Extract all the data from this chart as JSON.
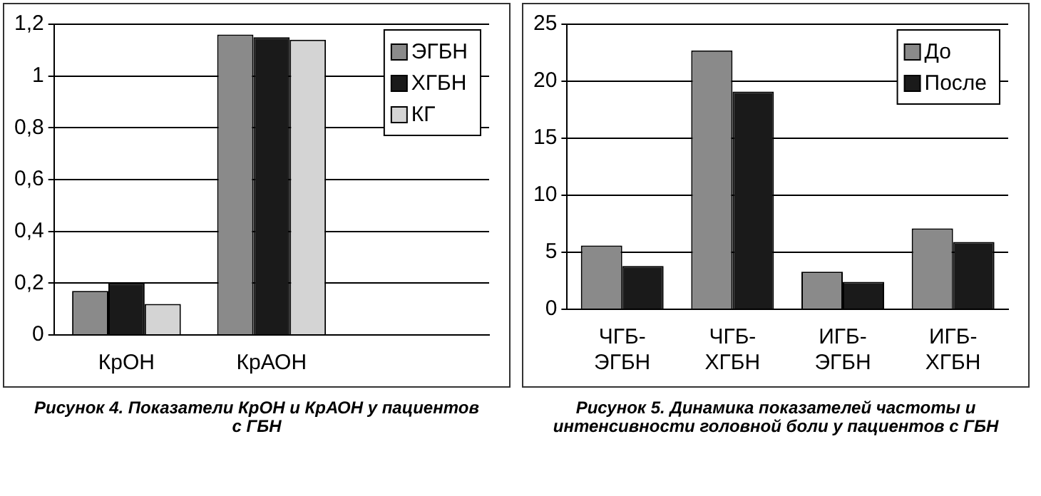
{
  "chart_data": [
    {
      "type": "bar",
      "title": "Рисунок 4. Показатели КрОН и КрАОН у пациентов с ГБН",
      "categories": [
        "КрОН",
        "КрАОН",
        null
      ],
      "series": [
        {
          "name": "ЭГБН",
          "color": "#8a8a8a",
          "values": [
            0.17,
            1.16,
            null
          ]
        },
        {
          "name": "ХГБН",
          "color": "#1a1a1a",
          "values": [
            0.2,
            1.15,
            null
          ]
        },
        {
          "name": "КГ",
          "color": "#d4d4d4",
          "values": [
            0.12,
            1.14,
            null
          ]
        }
      ],
      "ylim": [
        0,
        1.2
      ],
      "yticks": [
        {
          "value": 0,
          "label": "0"
        },
        {
          "value": 0.2,
          "label": "0,2"
        },
        {
          "value": 0.4,
          "label": "0,4"
        },
        {
          "value": 0.6,
          "label": "0,6"
        },
        {
          "value": 0.8,
          "label": "0,8"
        },
        {
          "value": 1,
          "label": "1"
        },
        {
          "value": 1.2,
          "label": "1,2"
        }
      ],
      "grid": "y",
      "legend": "top right"
    },
    {
      "type": "bar",
      "title": "Рисунок 5. Динамика показателей частоты и интенсивности головной боли у пациентов с ГБН",
      "categories": [
        "ЧГБ-ЭГБН",
        "ЧГБ-ХГБН",
        "ИГБ-ЭГБН",
        "ИГБ-ХГБН"
      ],
      "series": [
        {
          "name": "До",
          "color": "#8a8a8a",
          "values": [
            5.6,
            22.7,
            3.3,
            7.1
          ]
        },
        {
          "name": "После",
          "color": "#1a1a1a",
          "values": [
            3.8,
            19.1,
            2.4,
            5.9
          ]
        }
      ],
      "ylim": [
        0,
        25
      ],
      "yticks": [
        0,
        5,
        10,
        15,
        20,
        25
      ],
      "grid": "y",
      "legend": "top right"
    }
  ]
}
